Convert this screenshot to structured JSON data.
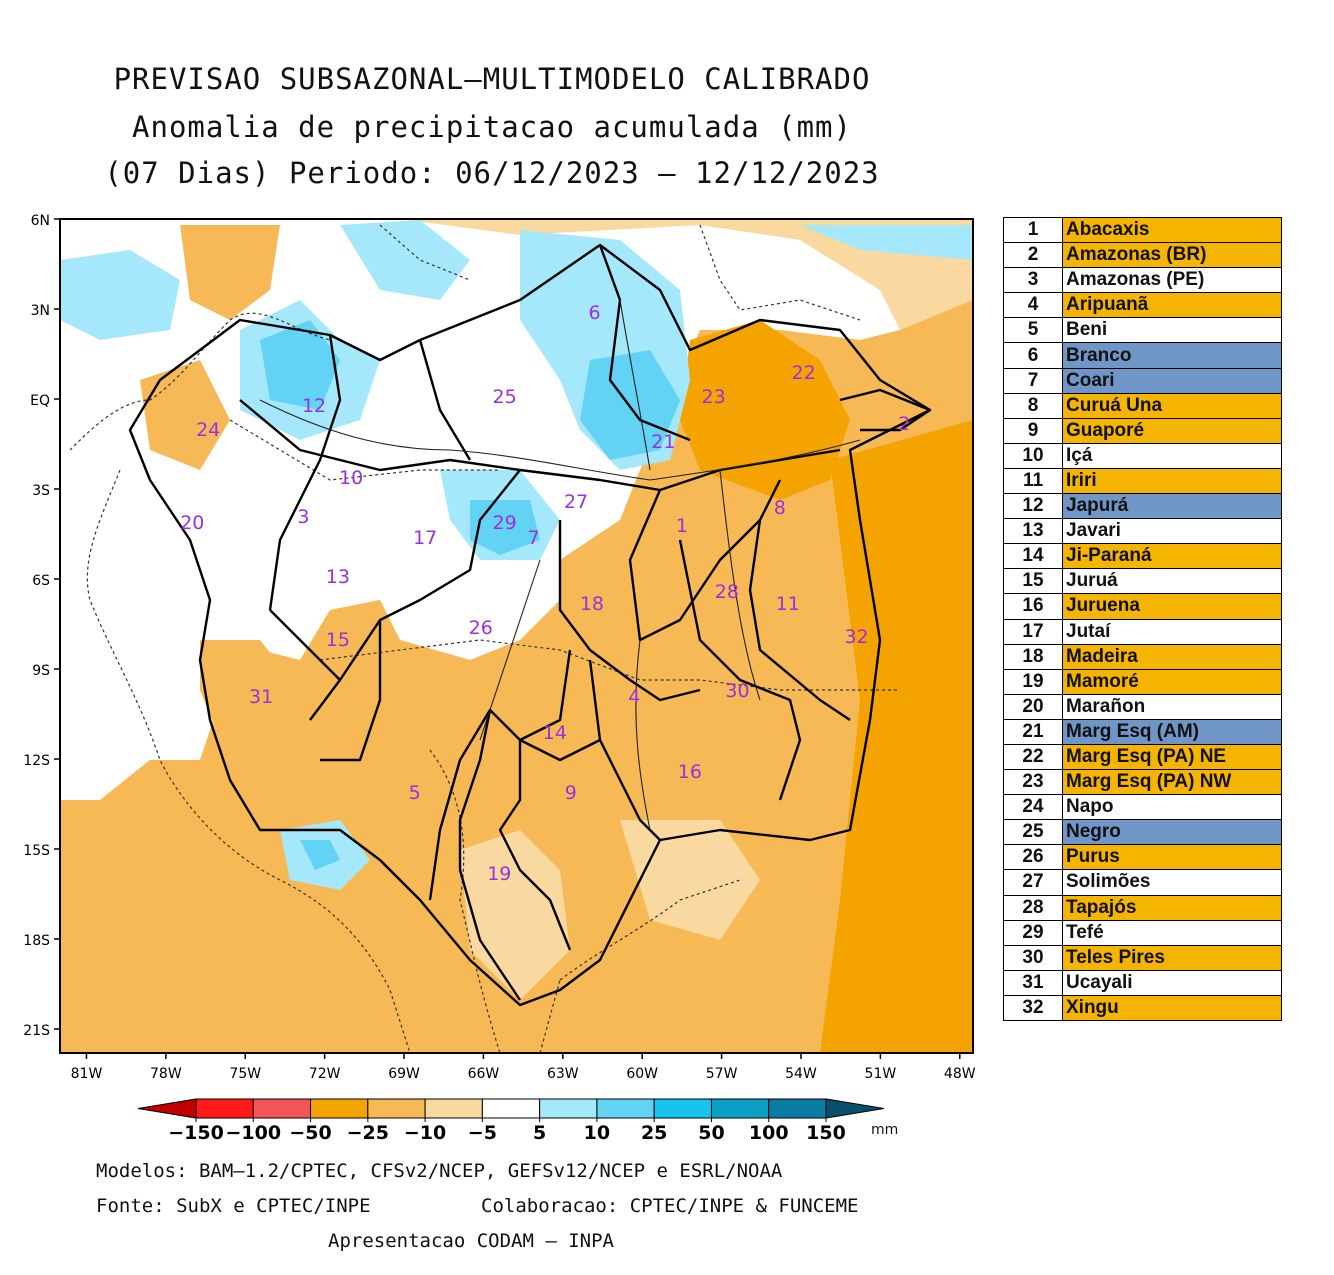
{
  "title": {
    "line1": "PREVISAO SUBSAZONAL—MULTIMODELO CALIBRADO",
    "line2": "Anomalia de precipitacao acumulada (mm)",
    "line3": "(07 Dias) Periodo: 06/12/2023 — 12/12/2023"
  },
  "map": {
    "lat_ticks": [
      "6N",
      "3N",
      "EQ",
      "3S",
      "6S",
      "9S",
      "12S",
      "15S",
      "18S",
      "21S"
    ],
    "lon_ticks": [
      "81W",
      "78W",
      "75W",
      "72W",
      "69W",
      "66W",
      "63W",
      "60W",
      "57W",
      "54W",
      "51W",
      "48W"
    ],
    "basin_labels": [
      {
        "n": "1",
        "lon": -58.5,
        "lat": -4.2
      },
      {
        "n": "2",
        "lon": -50.1,
        "lat": -0.8
      },
      {
        "n": "3",
        "lon": -72.8,
        "lat": -3.9
      },
      {
        "n": "4",
        "lon": -60.3,
        "lat": -9.9
      },
      {
        "n": "5",
        "lon": -68.6,
        "lat": -13.1
      },
      {
        "n": "6",
        "lon": -61.8,
        "lat": 2.9
      },
      {
        "n": "7",
        "lon": -64.1,
        "lat": -4.6
      },
      {
        "n": "8",
        "lon": -54.8,
        "lat": -3.6
      },
      {
        "n": "9",
        "lon": -62.7,
        "lat": -13.1
      },
      {
        "n": "10",
        "lon": -71.0,
        "lat": -2.6
      },
      {
        "n": "11",
        "lon": -54.5,
        "lat": -6.8
      },
      {
        "n": "12",
        "lon": -72.4,
        "lat": -0.2
      },
      {
        "n": "13",
        "lon": -71.5,
        "lat": -5.9
      },
      {
        "n": "14",
        "lon": -63.3,
        "lat": -11.1
      },
      {
        "n": "15",
        "lon": -71.5,
        "lat": -8.0
      },
      {
        "n": "16",
        "lon": -58.2,
        "lat": -12.4
      },
      {
        "n": "17",
        "lon": -68.2,
        "lat": -4.6
      },
      {
        "n": "18",
        "lon": -61.9,
        "lat": -6.8
      },
      {
        "n": "19",
        "lon": -65.4,
        "lat": -15.8
      },
      {
        "n": "20",
        "lon": -77.0,
        "lat": -4.1
      },
      {
        "n": "21",
        "lon": -59.2,
        "lat": -1.4
      },
      {
        "n": "22",
        "lon": -53.9,
        "lat": 0.9
      },
      {
        "n": "23",
        "lon": -57.3,
        "lat": 0.1
      },
      {
        "n": "24",
        "lon": -76.4,
        "lat": -1.0
      },
      {
        "n": "25",
        "lon": -65.2,
        "lat": 0.1
      },
      {
        "n": "26",
        "lon": -66.1,
        "lat": -7.6
      },
      {
        "n": "27",
        "lon": -62.5,
        "lat": -3.4
      },
      {
        "n": "28",
        "lon": -56.8,
        "lat": -6.4
      },
      {
        "n": "29",
        "lon": -65.2,
        "lat": -4.1
      },
      {
        "n": "30",
        "lon": -56.4,
        "lat": -9.7
      },
      {
        "n": "31",
        "lon": -74.4,
        "lat": -9.9
      },
      {
        "n": "32",
        "lon": -51.9,
        "lat": -7.9
      }
    ]
  },
  "colorbar": {
    "labels": [
      "−150",
      "−100",
      "−50",
      "−25",
      "−10",
      "−5",
      "5",
      "10",
      "25",
      "50",
      "100",
      "150"
    ],
    "unit": "mm",
    "colors": [
      "#c30000",
      "#ff1a1a",
      "#f25555",
      "#f5a300",
      "#f7b955",
      "#fad9a0",
      "#ffffff",
      "#a6e8fb",
      "#62d2f5",
      "#16c4ee",
      "#0a9fc4",
      "#0a7ba3",
      "#06506b"
    ]
  },
  "legend": [
    {
      "num": "1",
      "name": "Abacaxis",
      "color": "#f5b400"
    },
    {
      "num": "2",
      "name": "Amazonas (BR)",
      "color": "#f5b400"
    },
    {
      "num": "3",
      "name": "Amazonas (PE)",
      "color": "#ffffff"
    },
    {
      "num": "4",
      "name": "Aripuanã",
      "color": "#f5b400"
    },
    {
      "num": "5",
      "name": "Beni",
      "color": "#ffffff"
    },
    {
      "num": "6",
      "name": "Branco",
      "color": "#7096c8"
    },
    {
      "num": "7",
      "name": "Coari",
      "color": "#7096c8"
    },
    {
      "num": "8",
      "name": "Curuá Una",
      "color": "#f5b400"
    },
    {
      "num": "9",
      "name": "Guaporé",
      "color": "#f5b400"
    },
    {
      "num": "10",
      "name": "Içá",
      "color": "#ffffff"
    },
    {
      "num": "11",
      "name": "Iriri",
      "color": "#f5b400"
    },
    {
      "num": "12",
      "name": "Japurá",
      "color": "#7096c8"
    },
    {
      "num": "13",
      "name": "Javari",
      "color": "#ffffff"
    },
    {
      "num": "14",
      "name": "Ji-Paraná",
      "color": "#f5b400"
    },
    {
      "num": "15",
      "name": "Juruá",
      "color": "#ffffff"
    },
    {
      "num": "16",
      "name": "Juruena",
      "color": "#f5b400"
    },
    {
      "num": "17",
      "name": "Jutaí",
      "color": "#ffffff"
    },
    {
      "num": "18",
      "name": "Madeira",
      "color": "#f5b400"
    },
    {
      "num": "19",
      "name": "Mamoré",
      "color": "#f5b400"
    },
    {
      "num": "20",
      "name": "Marañon",
      "color": "#ffffff"
    },
    {
      "num": "21",
      "name": "Marg Esq (AM)",
      "color": "#7096c8"
    },
    {
      "num": "22",
      "name": "Marg Esq (PA) NE",
      "color": "#f5b400"
    },
    {
      "num": "23",
      "name": "Marg Esq (PA) NW",
      "color": "#f5b400"
    },
    {
      "num": "24",
      "name": "Napo",
      "color": "#ffffff"
    },
    {
      "num": "25",
      "name": "Negro",
      "color": "#7096c8"
    },
    {
      "num": "26",
      "name": "Purus",
      "color": "#f5b400"
    },
    {
      "num": "27",
      "name": "Solimões",
      "color": "#ffffff"
    },
    {
      "num": "28",
      "name": "Tapajós",
      "color": "#f5b400"
    },
    {
      "num": "29",
      "name": "Tefé",
      "color": "#ffffff"
    },
    {
      "num": "30",
      "name": "Teles Pires",
      "color": "#f5b400"
    },
    {
      "num": "31",
      "name": "Ucayali",
      "color": "#ffffff"
    },
    {
      "num": "32",
      "name": "Xingu",
      "color": "#f5b400"
    }
  ],
  "footer": {
    "models": "Modelos: BAM—1.2/CPTEC, CFSv2/NCEP, GEFSv12/NCEP e ESRL/NOAA",
    "source": "Fonte: SubX e CPTEC/INPE",
    "collab": "Colaboracao: CPTEC/INPE & FUNCEME",
    "presentation": "Apresentacao CODAM — INPA"
  }
}
